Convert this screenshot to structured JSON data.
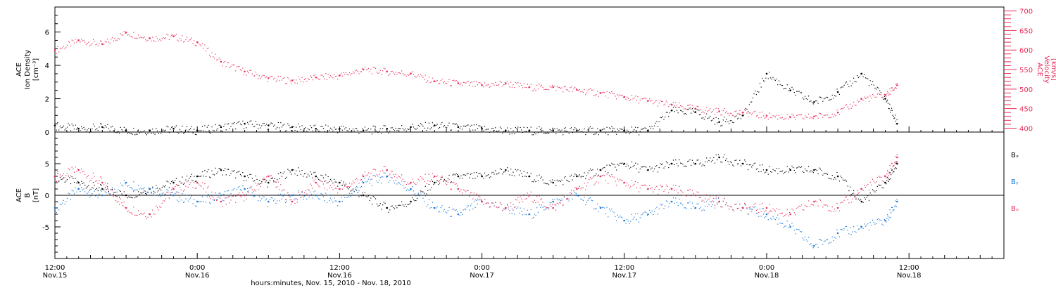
{
  "chart_data": [
    {
      "type": "scatter",
      "panel": "top",
      "ylabel_left": [
        "ACE",
        "Ion Density",
        "[cm⁻³]"
      ],
      "ylabel_right": [
        "ACE",
        "Velocity",
        "[km/s]"
      ],
      "ylim_left": [
        0,
        7.5
      ],
      "ylim_right": [
        390,
        710
      ],
      "yticks_left": [
        0,
        2,
        4,
        6
      ],
      "yticks_right": [
        400,
        450,
        500,
        550,
        600,
        650,
        700
      ],
      "colors": {
        "density": "#000000",
        "velocity": "#e8305a"
      },
      "series": [
        {
          "name": "Ion Density",
          "axis": "left",
          "color": "#000000",
          "x_hours": [
            0,
            2,
            4,
            6,
            8,
            10,
            12,
            14,
            16,
            18,
            20,
            22,
            24,
            26,
            28,
            30,
            32,
            34,
            36,
            38,
            40,
            42,
            44,
            46,
            48,
            50,
            52,
            54,
            56,
            58,
            60,
            62,
            64,
            66,
            68,
            70,
            71
          ],
          "values": [
            0.4,
            0.2,
            0.3,
            0.1,
            0.1,
            0.2,
            0.1,
            0.3,
            0.5,
            0.4,
            0.3,
            0.2,
            0.2,
            0.1,
            0.2,
            0.3,
            0.4,
            0.3,
            0.2,
            0.1,
            0.1,
            0.1,
            0.1,
            0.1,
            0.1,
            0.1,
            1.3,
            1.2,
            0.6,
            1.0,
            3.5,
            2.5,
            1.8,
            2.4,
            3.5,
            2.0,
            0.5
          ]
        },
        {
          "name": "Velocity",
          "axis": "right",
          "color": "#e8305a",
          "x_hours": [
            0,
            2,
            4,
            6,
            8,
            10,
            12,
            14,
            16,
            18,
            20,
            22,
            24,
            26,
            28,
            30,
            32,
            34,
            36,
            38,
            40,
            42,
            44,
            46,
            48,
            50,
            52,
            54,
            56,
            58,
            60,
            62,
            64,
            66,
            68,
            70,
            71
          ],
          "values": [
            600,
            625,
            615,
            645,
            630,
            635,
            620,
            570,
            545,
            528,
            522,
            530,
            535,
            550,
            545,
            540,
            520,
            515,
            510,
            515,
            505,
            505,
            498,
            490,
            480,
            470,
            460,
            450,
            443,
            440,
            432,
            428,
            430,
            440,
            475,
            485,
            510
          ]
        }
      ]
    },
    {
      "type": "scatter",
      "panel": "bottom",
      "ylabel": [
        "ACE",
        "B",
        "[nT]"
      ],
      "ylim": [
        -10,
        10
      ],
      "yticks": [
        -5,
        0,
        5
      ],
      "legend": [
        "Bₓ",
        "Bᵧ",
        "Bᵤ"
      ],
      "legend_placement": "right",
      "colors": {
        "bx": "#000000",
        "by": "#1a78d6",
        "bz": "#e8305a"
      },
      "series": [
        {
          "name": "Bx",
          "color": "#000000",
          "x_hours": [
            0,
            2,
            4,
            6,
            8,
            10,
            12,
            14,
            16,
            18,
            20,
            22,
            24,
            26,
            28,
            30,
            32,
            34,
            36,
            38,
            40,
            42,
            44,
            46,
            48,
            50,
            52,
            54,
            56,
            58,
            60,
            62,
            64,
            66,
            68,
            70,
            71
          ],
          "values": [
            3,
            2,
            1,
            0,
            1,
            2,
            3,
            4,
            3,
            2,
            4,
            3,
            2,
            0,
            -2,
            -1,
            2,
            3,
            3,
            4,
            3,
            2,
            3,
            4,
            5,
            4,
            5,
            5,
            6,
            5,
            4,
            4,
            4,
            3,
            -1,
            2,
            5
          ]
        },
        {
          "name": "By",
          "color": "#1a78d6",
          "x_hours": [
            0,
            2,
            4,
            6,
            8,
            10,
            12,
            14,
            16,
            18,
            20,
            22,
            24,
            26,
            28,
            30,
            32,
            34,
            36,
            38,
            40,
            42,
            44,
            46,
            48,
            50,
            52,
            54,
            56,
            58,
            60,
            62,
            64,
            66,
            68,
            70,
            71
          ],
          "values": [
            -2,
            1,
            0,
            2,
            1,
            0,
            -1,
            0,
            1,
            -1,
            0,
            0,
            -1,
            2,
            3,
            1,
            -2,
            -3,
            -1,
            -2,
            -3,
            -1,
            0,
            -2,
            -4,
            -3,
            -1,
            -2,
            -1,
            -2,
            -3,
            -5,
            -8,
            -6,
            -5,
            -4,
            -1
          ]
        },
        {
          "name": "Bz",
          "color": "#e8305a",
          "x_hours": [
            0,
            2,
            4,
            6,
            8,
            10,
            12,
            14,
            16,
            18,
            20,
            22,
            24,
            26,
            28,
            30,
            32,
            34,
            36,
            38,
            40,
            42,
            44,
            46,
            48,
            50,
            52,
            54,
            56,
            58,
            60,
            62,
            64,
            66,
            68,
            70,
            71
          ],
          "values": [
            3,
            4,
            2,
            -2,
            -3,
            1,
            2,
            -1,
            0,
            3,
            -1,
            2,
            1,
            3,
            4,
            2,
            3,
            1,
            -1,
            -2,
            0,
            -2,
            1,
            3,
            2,
            1,
            1,
            0,
            -1,
            -2,
            -2,
            -3,
            -1,
            -2,
            1,
            3,
            6
          ]
        }
      ]
    }
  ],
  "x_axis": {
    "ticks": [
      {
        "hour": 0,
        "label": "12:00",
        "date": "Nov.15"
      },
      {
        "hour": 12,
        "label": "0:00",
        "date": "Nov.16"
      },
      {
        "hour": 24,
        "label": "12:00",
        "date": "Nov.16"
      },
      {
        "hour": 36,
        "label": "0:00",
        "date": "Nov.17"
      },
      {
        "hour": 48,
        "label": "12:00",
        "date": "Nov.17"
      },
      {
        "hour": 60,
        "label": "0:00",
        "date": "Nov.18"
      },
      {
        "hour": 72,
        "label": "12:00",
        "date": "Nov.18"
      }
    ],
    "xlim_hours": [
      0,
      80
    ],
    "xlabel": "hours:minutes, Nov. 15, 2010 - Nov. 18, 2010"
  }
}
